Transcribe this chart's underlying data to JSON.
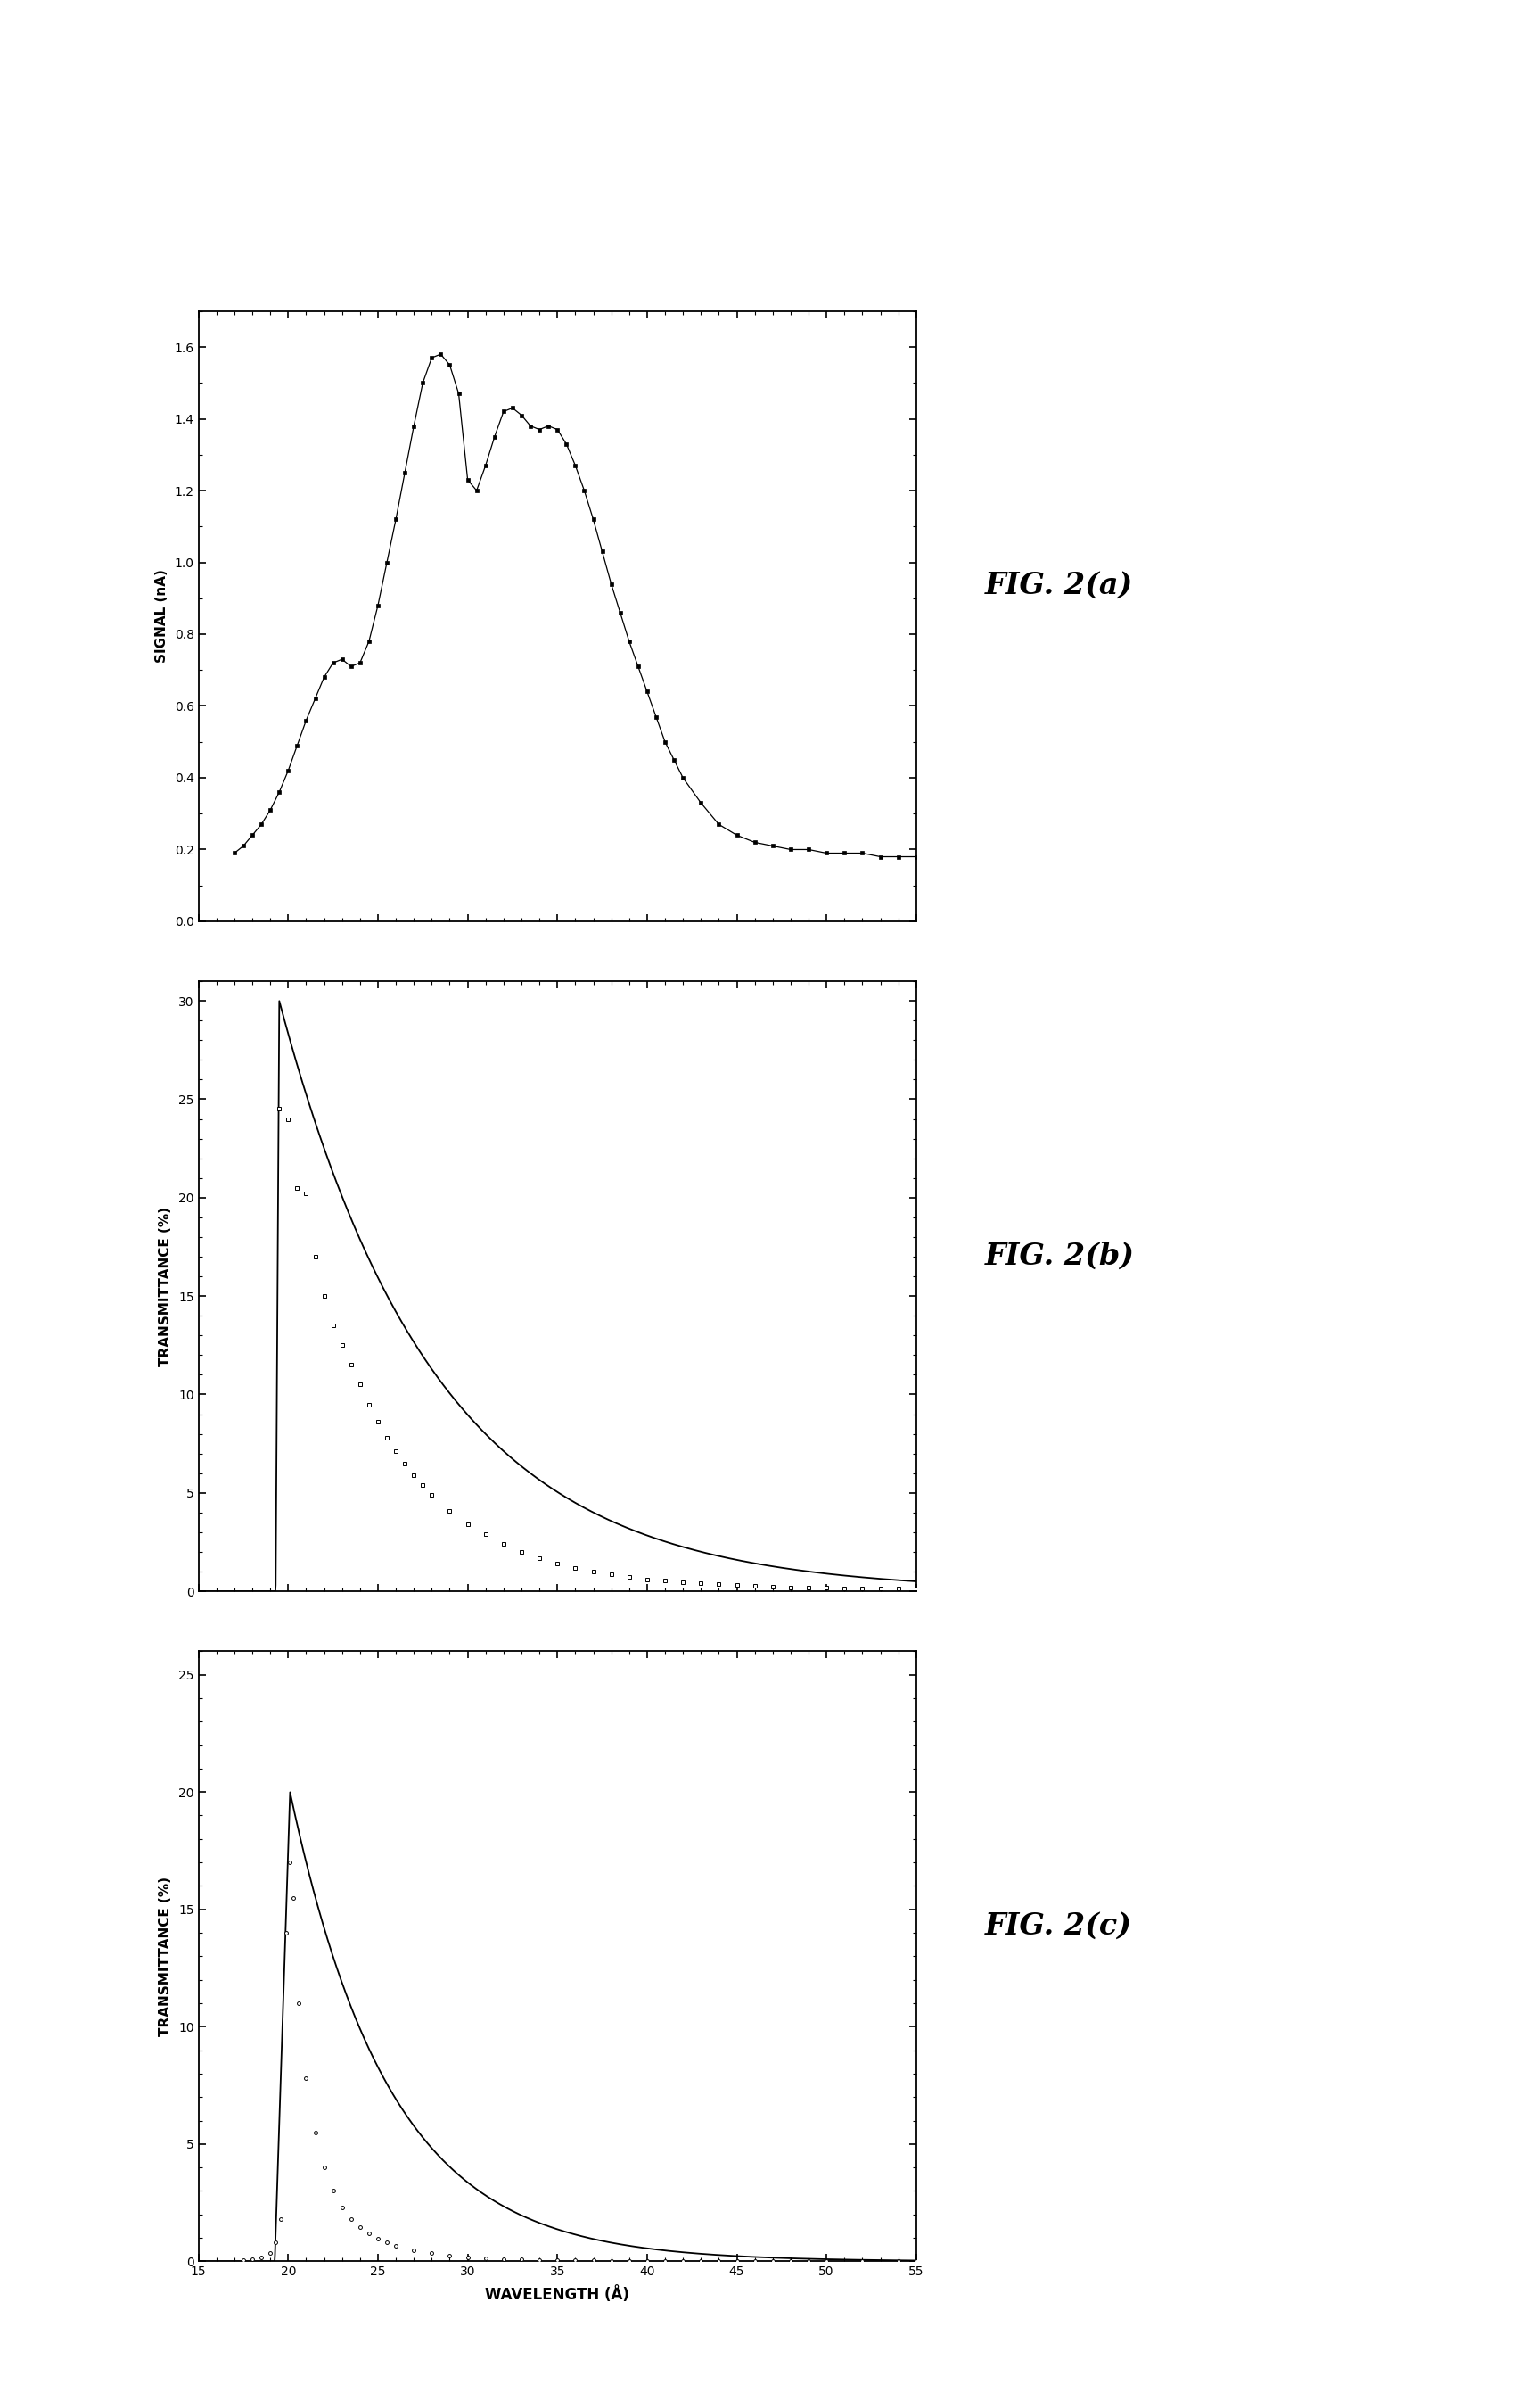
{
  "fig_labels": [
    "FIG. 2(a)",
    "FIG. 2(b)",
    "FIG. 2(c)"
  ],
  "xlim": [
    15,
    55
  ],
  "xticks": [
    15,
    20,
    25,
    30,
    35,
    40,
    45,
    50,
    55
  ],
  "xlabel": "WAVELENGTH (Å)",
  "panel_a": {
    "ylabel": "SIGNAL (nA)",
    "ylim": [
      0.0,
      1.7
    ],
    "yticks": [
      0.0,
      0.2,
      0.4,
      0.6,
      0.8,
      1.0,
      1.2,
      1.4,
      1.6
    ]
  },
  "panel_b": {
    "ylabel": "TRANSMITTANCE (%)",
    "ylim": [
      0,
      31
    ],
    "yticks": [
      0,
      5,
      10,
      15,
      20,
      25,
      30
    ]
  },
  "panel_c": {
    "ylabel": "TRANSMITTANCE (%)",
    "ylim": [
      0,
      26
    ],
    "yticks": [
      0,
      5,
      10,
      15,
      20,
      25
    ]
  },
  "background_color": "#ffffff",
  "panel_a_x": [
    17.0,
    17.5,
    18.0,
    18.5,
    19.0,
    19.5,
    20.0,
    20.5,
    21.0,
    21.5,
    22.0,
    22.5,
    23.0,
    23.5,
    24.0,
    24.5,
    25.0,
    25.5,
    26.0,
    26.5,
    27.0,
    27.5,
    28.0,
    28.5,
    29.0,
    29.5,
    30.0,
    30.5,
    31.0,
    31.5,
    32.0,
    32.5,
    33.0,
    33.5,
    34.0,
    34.5,
    35.0,
    35.5,
    36.0,
    36.5,
    37.0,
    37.5,
    38.0,
    38.5,
    39.0,
    39.5,
    40.0,
    40.5,
    41.0,
    41.5,
    42.0,
    43.0,
    44.0,
    45.0,
    46.0,
    47.0,
    48.0,
    49.0,
    50.0,
    51.0,
    52.0,
    53.0,
    54.0,
    55.0
  ],
  "panel_a_y": [
    0.19,
    0.21,
    0.24,
    0.27,
    0.31,
    0.36,
    0.42,
    0.49,
    0.56,
    0.62,
    0.68,
    0.72,
    0.73,
    0.71,
    0.72,
    0.78,
    0.88,
    1.0,
    1.12,
    1.25,
    1.38,
    1.5,
    1.57,
    1.58,
    1.55,
    1.47,
    1.23,
    1.2,
    1.27,
    1.35,
    1.42,
    1.43,
    1.41,
    1.38,
    1.37,
    1.38,
    1.37,
    1.33,
    1.27,
    1.2,
    1.12,
    1.03,
    0.94,
    0.86,
    0.78,
    0.71,
    0.64,
    0.57,
    0.5,
    0.45,
    0.4,
    0.33,
    0.27,
    0.24,
    0.22,
    0.21,
    0.2,
    0.2,
    0.19,
    0.19,
    0.19,
    0.18,
    0.18,
    0.18
  ],
  "panel_b_pts_x": [
    19.5,
    20.0,
    20.5,
    21.0,
    21.5,
    22.0,
    22.5,
    23.0,
    23.5,
    24.0,
    24.5,
    25.0,
    25.5,
    26.0,
    26.5,
    27.0,
    27.5,
    28.0,
    29.0,
    30.0,
    31.0,
    32.0,
    33.0,
    34.0,
    35.0,
    36.0,
    37.0,
    38.0,
    39.0,
    40.0,
    41.0,
    42.0,
    43.0,
    44.0,
    45.0,
    46.0,
    47.0,
    48.0,
    49.0,
    50.0,
    51.0,
    52.0,
    53.0,
    54.0,
    55.0
  ],
  "panel_b_pts_y": [
    24.5,
    24.0,
    20.5,
    20.2,
    17.0,
    15.0,
    13.5,
    12.5,
    11.5,
    10.5,
    9.5,
    8.6,
    7.8,
    7.1,
    6.5,
    5.9,
    5.4,
    4.9,
    4.1,
    3.4,
    2.9,
    2.4,
    2.0,
    1.7,
    1.4,
    1.2,
    1.0,
    0.85,
    0.72,
    0.62,
    0.53,
    0.46,
    0.4,
    0.35,
    0.31,
    0.27,
    0.24,
    0.21,
    0.19,
    0.17,
    0.16,
    0.15,
    0.14,
    0.13,
    0.13
  ],
  "panel_c_pts_x": [
    17.5,
    18.0,
    18.5,
    19.0,
    19.3,
    19.6,
    19.9,
    20.1,
    20.3,
    20.6,
    21.0,
    21.5,
    22.0,
    22.5,
    23.0,
    23.5,
    24.0,
    24.5,
    25.0,
    25.5,
    26.0,
    27.0,
    28.0,
    29.0,
    30.0,
    31.0,
    32.0,
    33.0,
    34.0,
    35.0,
    36.0,
    37.0,
    38.0,
    39.0,
    40.0,
    41.0,
    42.0,
    43.0,
    44.0,
    45.0,
    46.0,
    47.0,
    48.0,
    49.0,
    50.0,
    52.0,
    54.0,
    55.0
  ],
  "panel_c_pts_y": [
    0.05,
    0.1,
    0.18,
    0.35,
    0.8,
    1.8,
    14.0,
    17.0,
    15.5,
    11.0,
    7.8,
    5.5,
    4.0,
    3.0,
    2.3,
    1.8,
    1.45,
    1.18,
    0.97,
    0.8,
    0.67,
    0.47,
    0.34,
    0.25,
    0.18,
    0.14,
    0.11,
    0.085,
    0.068,
    0.054,
    0.044,
    0.036,
    0.029,
    0.024,
    0.02,
    0.017,
    0.014,
    0.012,
    0.01,
    0.009,
    0.008,
    0.007,
    0.006,
    0.005,
    0.005,
    0.004,
    0.003,
    0.003
  ]
}
